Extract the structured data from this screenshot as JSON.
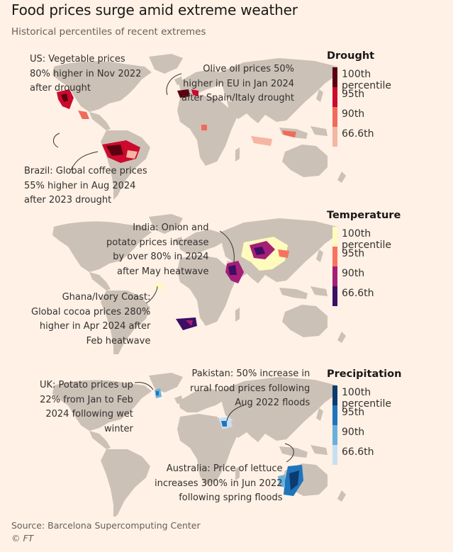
{
  "header": {
    "title": "Food prices surge amid extreme weather",
    "subtitle": "Historical percentiles of recent extremes"
  },
  "colors": {
    "background": "#fff1e5",
    "land": "#ccc1b7",
    "drought": [
      "#5a0010",
      "#cc0a2d",
      "#f06b5a",
      "#f4b5a3"
    ],
    "temperature": [
      "#fffbbd",
      "#f6745f",
      "#a51e77",
      "#3d0f63"
    ],
    "precipitation": [
      "#0c3b70",
      "#1f75bb",
      "#6ab0dc",
      "#c8dff2"
    ]
  },
  "panels": [
    {
      "id": "drought",
      "legend_title": "Drought",
      "legend": [
        "100th percentile",
        "95th",
        "90th",
        "66.6th"
      ],
      "annotations": [
        {
          "lines": [
            "US: Vegetable prices",
            "80% higher in Nov 2022",
            "after drought"
          ]
        },
        {
          "lines": [
            "Olive oil prices 50%",
            "higher in EU in Jan 2024",
            "after Spain/Italy drought"
          ]
        },
        {
          "lines": [
            "Brazil: Global coffee prices",
            "55% higher in Aug 2024",
            "after 2023 drought"
          ]
        }
      ]
    },
    {
      "id": "temperature",
      "legend_title": "Temperature",
      "legend": [
        "100th percentile",
        "95th",
        "90th",
        "66.6th"
      ],
      "annotations": [
        {
          "lines": [
            "India: Onion and",
            "potato prices increase",
            "by over 80% in 2024",
            "after May heatwave"
          ]
        },
        {
          "lines": [
            "Ghana/Ivory Coast:",
            "Global cocoa prices 280%",
            "higher in Apr 2024 after",
            "Feb heatwave"
          ]
        }
      ]
    },
    {
      "id": "precipitation",
      "legend_title": "Precipitation",
      "legend": [
        "100th percentile",
        "95th",
        "90th",
        "66.6th"
      ],
      "annotations": [
        {
          "lines": [
            "UK: Potato prices up",
            "22% from Jan to Feb",
            "2024 following wet",
            "winter"
          ]
        },
        {
          "lines": [
            "Pakistan: 50% increase in",
            "rural food prices following",
            "Aug 2022 floods"
          ]
        },
        {
          "lines": [
            "Australia: Price of lettuce",
            "increases 300% in Jun 2022",
            "following spring floods"
          ]
        }
      ]
    }
  ],
  "footer": {
    "source": "Source: Barcelona Supercomputing Center",
    "credit": "© FT"
  }
}
